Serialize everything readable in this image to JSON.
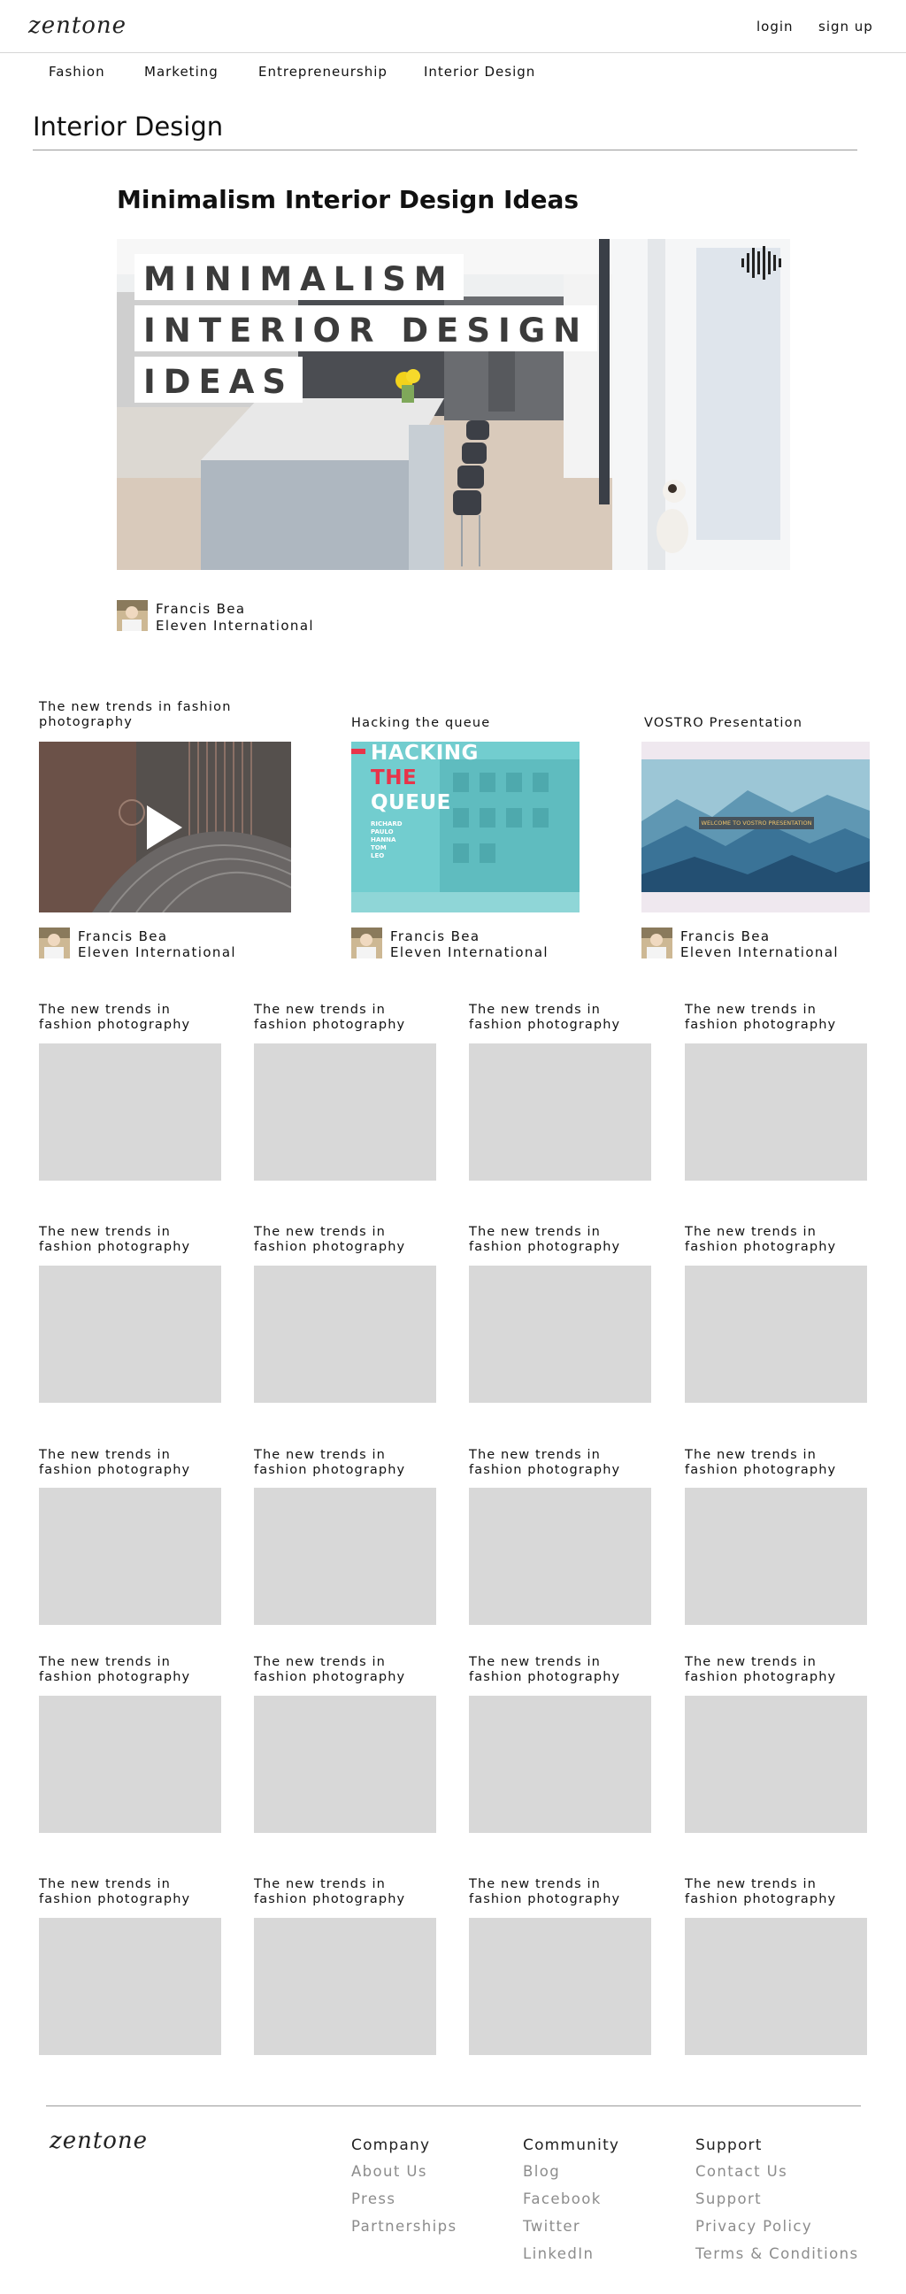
{
  "header": {
    "logo": "zentone",
    "login": "login",
    "signup": "sign up"
  },
  "nav": [
    "Fashion",
    "Marketing",
    "Entrepreneurship",
    "Interior Design"
  ],
  "page_title": "Interior Design",
  "featured": {
    "title": "Minimalism Interior Design Ideas",
    "image_lines": [
      "MINIMALISM",
      "INTERIOR DESIGN",
      "IDEAS"
    ],
    "author_name": "Francis Bea",
    "author_org": "Eleven International"
  },
  "cards": [
    {
      "title": "The new trends in fashion photography",
      "author_name": "Francis Bea",
      "author_org": "Eleven International"
    },
    {
      "title": "Hacking the queue",
      "thumb_lines": [
        "HACKING",
        "THE",
        "QUEUE"
      ],
      "thumb_names": [
        "RICHARD",
        "PAULO",
        "HANNA",
        "TOM",
        "LEO"
      ],
      "author_name": "Francis Bea",
      "author_org": "Eleven International"
    },
    {
      "title": "VOSTRO Presentation",
      "thumb_text": "WELCOME TO VOSTRO PRESENTATION",
      "author_name": "Francis Bea",
      "author_org": "Eleven International"
    }
  ],
  "grid": {
    "item_title": "The new trends in fashion photography",
    "rows": 5,
    "columns": 4
  },
  "footer": {
    "logo": "zentone",
    "columns": [
      {
        "heading": "Company",
        "links": [
          "About Us",
          "Press",
          "Partnerships"
        ]
      },
      {
        "heading": "Community",
        "links": [
          "Blog",
          "Facebook",
          "Twitter",
          "LinkedIn"
        ]
      },
      {
        "heading": "Support",
        "links": [
          "Contact Us",
          "Support",
          "Privacy Policy",
          "Terms & Conditions"
        ]
      }
    ]
  },
  "colors": {
    "placeholder": "#d8d8d8",
    "rule": "#9a9a9a",
    "footer_link": "#8c8c8c",
    "teal": "#69c9cc",
    "accent_red": "#e8344a"
  }
}
